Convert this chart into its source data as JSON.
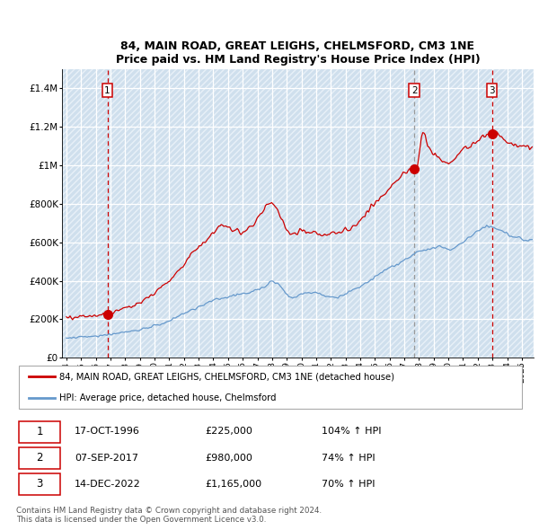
{
  "title": "84, MAIN ROAD, GREAT LEIGHS, CHELMSFORD, CM3 1NE",
  "subtitle": "Price paid vs. HM Land Registry's House Price Index (HPI)",
  "plot_bg_color": "#dce9f5",
  "hatch_color": "#b8cfe0",
  "red_line_color": "#cc0000",
  "blue_line_color": "#6699cc",
  "ylim": [
    0,
    1500000
  ],
  "yticks": [
    0,
    200000,
    400000,
    600000,
    800000,
    1000000,
    1200000,
    1400000
  ],
  "ytick_labels": [
    "£0",
    "£200K",
    "£400K",
    "£600K",
    "£800K",
    "£1M",
    "£1.2M",
    "£1.4M"
  ],
  "xlim_start": 1993.7,
  "xlim_end": 2025.8,
  "sale_dates": [
    1996.79,
    2017.69,
    2022.96
  ],
  "sale_prices": [
    225000,
    980000,
    1165000
  ],
  "sale_labels": [
    "1",
    "2",
    "3"
  ],
  "sale_vline_styles": [
    "red_dash",
    "grey_dash",
    "red_dash"
  ],
  "legend_red_label": "84, MAIN ROAD, GREAT LEIGHS, CHELMSFORD, CM3 1NE (detached house)",
  "legend_blue_label": "HPI: Average price, detached house, Chelmsford",
  "table_rows": [
    [
      "1",
      "17-OCT-1996",
      "£225,000",
      "104% ↑ HPI"
    ],
    [
      "2",
      "07-SEP-2017",
      "£980,000",
      "74% ↑ HPI"
    ],
    [
      "3",
      "14-DEC-2022",
      "£1,165,000",
      "70% ↑ HPI"
    ]
  ],
  "footer": "Contains HM Land Registry data © Crown copyright and database right 2024.\nThis data is licensed under the Open Government Licence v3.0."
}
